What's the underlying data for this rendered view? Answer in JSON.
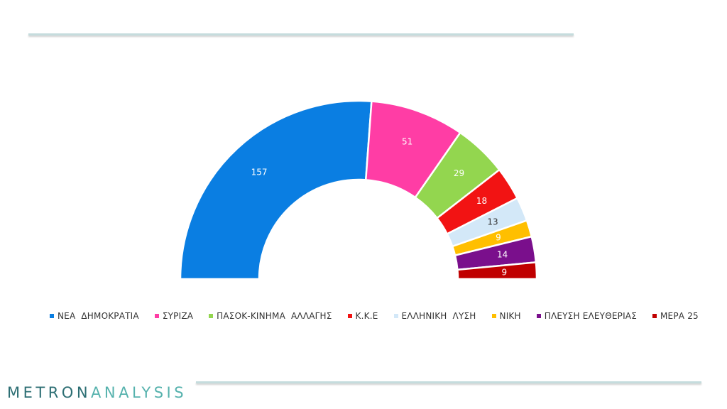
{
  "brand": {
    "part1": "METRON",
    "part2": "ANALYSIS"
  },
  "chart_data": {
    "type": "pie",
    "subtype": "parliament-semicircle",
    "title": "",
    "series": [
      {
        "name": "ΝΕΑ  ΔΗΜΟΚΡΑΤΙΑ",
        "value": 157,
        "color": "#0a7ee2"
      },
      {
        "name": "ΣΥΡΙΖΑ",
        "value": 51,
        "color": "#ff3da5"
      },
      {
        "name": "ΠΑΣΟΚ-ΚΙΝΗΜΑ  ΑΛΛΑΓΗΣ",
        "value": 29,
        "color": "#93d64f"
      },
      {
        "name": "Κ.Κ.Ε",
        "value": 18,
        "color": "#f21313"
      },
      {
        "name": "ΕΛΛΗΝΙΚΗ  ΛΥΣΗ",
        "value": 13,
        "color": "#d3e8f8"
      },
      {
        "name": "ΝΙΚΗ",
        "value": 9,
        "color": "#ffbf00"
      },
      {
        "name": "ΠΛΕΥΣΗ ΕΛΕΥΘΕΡΙΑΣ",
        "value": 14,
        "color": "#7a0f8c"
      },
      {
        "name": "ΜΕΡΑ 25",
        "value": 9,
        "color": "#c00000"
      }
    ],
    "legend": "bottom"
  }
}
